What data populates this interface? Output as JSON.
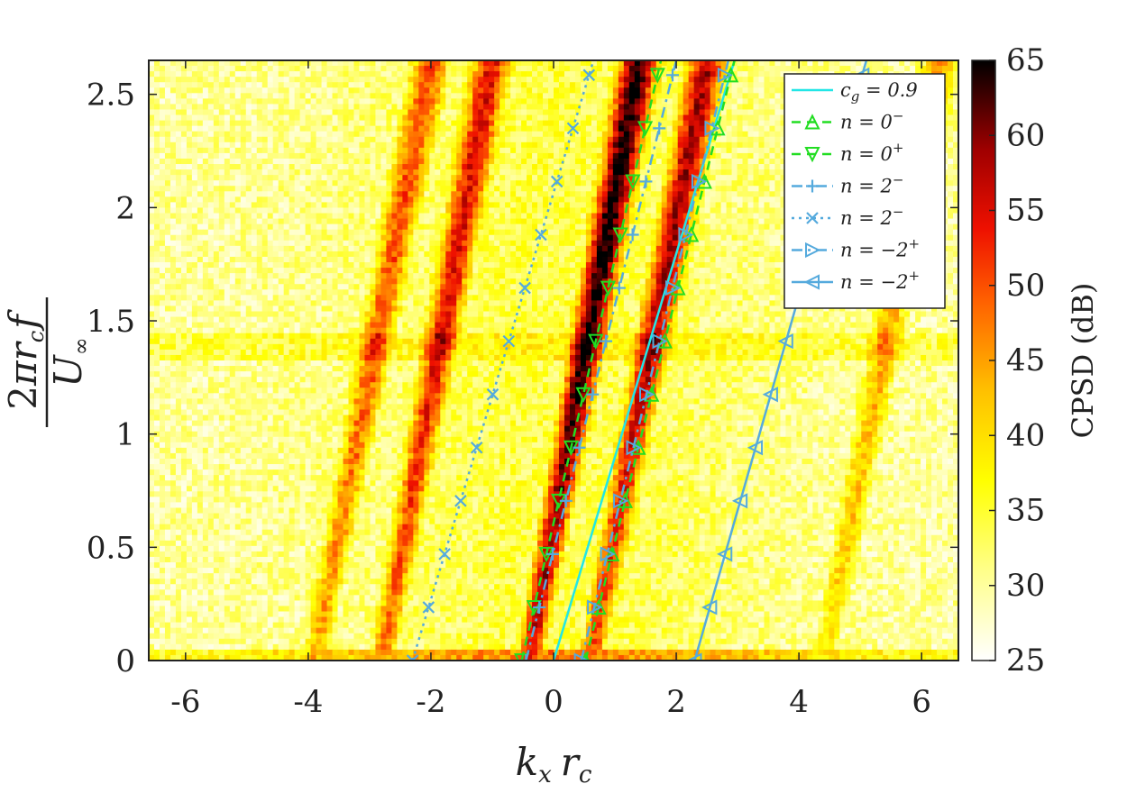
{
  "chart_data": {
    "type": "heatmap",
    "xlabel": "k_x r_c",
    "ylabel": "2πr_c f / U_∞",
    "xlim": [
      -6.6,
      6.6
    ],
    "ylim": [
      0,
      2.65
    ],
    "xticks": [
      -6,
      -4,
      -2,
      0,
      2,
      4,
      6
    ],
    "xtick_labels": [
      "-6",
      "-4",
      "-2",
      "0",
      "2",
      "4",
      "6"
    ],
    "yticks": [
      0,
      0.5,
      1,
      1.5,
      2,
      2.5
    ],
    "ytick_labels": [
      "0",
      "0.5",
      "1",
      "1.5",
      "2",
      "2.5"
    ],
    "colorbar": {
      "label": "CPSD (dB)",
      "range": [
        25,
        65
      ],
      "ticks": [
        25,
        30,
        35,
        40,
        45,
        50,
        55,
        60,
        65
      ],
      "tick_labels": [
        "25",
        "30",
        "35",
        "40",
        "45",
        "50",
        "55",
        "60",
        "65"
      ],
      "colormap": "hot (reversed)"
    },
    "heatmap_ridges": [
      {
        "x0": -0.4,
        "slope": 0.68,
        "peak_db": 65
      },
      {
        "x0": 0.6,
        "slope": 0.72,
        "peak_db": 58
      },
      {
        "x0": -2.8,
        "slope": 0.68,
        "peak_db": 55
      },
      {
        "x0": -3.9,
        "slope": 0.72,
        "peak_db": 50
      },
      {
        "x0": 4.4,
        "slope": 0.72,
        "peak_db": 44
      }
    ],
    "series": [
      {
        "name": "c_g = 0.9",
        "label_main": "c",
        "label_sub": "g",
        "label_rest": " = 0.9",
        "color": "#22e6e6",
        "dash": "solid",
        "marker": "none",
        "x": [
          0,
          2.95
        ],
        "y": [
          0,
          2.65
        ]
      },
      {
        "name": "n = 0−",
        "label_main": "n = 0",
        "label_sup": "−",
        "color": "#22dd22",
        "dash": "dashed",
        "marker": "triangle-up",
        "x": [
          0.52,
          2.95
        ],
        "y": [
          0,
          2.65
        ]
      },
      {
        "name": "n = 0+",
        "label_main": "n = 0",
        "label_sup": "+",
        "color": "#22dd22",
        "dash": "dashed",
        "marker": "triangle-down",
        "x": [
          -0.52,
          1.75
        ],
        "y": [
          0,
          2.65
        ]
      },
      {
        "name": "n = 2−",
        "label_main": "n = 2",
        "label_sup": "−",
        "color": "#55aadd",
        "dash": "dashdot",
        "marker": "plus",
        "x": [
          -0.45,
          2.0
        ],
        "y": [
          0,
          2.65
        ]
      },
      {
        "name": "n = 2−",
        "label_main": "n = 2",
        "label_sup": "−",
        "color": "#55aadd",
        "dash": "dotted",
        "marker": "x",
        "x": [
          -2.3,
          0.65
        ],
        "y": [
          0,
          2.65
        ]
      },
      {
        "name": "n = −2+",
        "label_main": "n = −2",
        "label_sup": "+",
        "color": "#55aadd",
        "dash": "dashdot",
        "marker": "triangle-right",
        "x": [
          0.45,
          2.85
        ],
        "y": [
          0,
          2.65
        ]
      },
      {
        "name": "n = −2+",
        "label_main": "n = −2",
        "label_sup": "+",
        "color": "#55aadd",
        "dash": "solid",
        "marker": "triangle-left",
        "x": [
          2.3,
          5.1
        ],
        "y": [
          0,
          2.65
        ]
      }
    ],
    "marker_y": [
      0,
      0.235,
      0.47,
      0.705,
      0.94,
      1.175,
      1.41,
      1.645,
      1.88,
      2.115,
      2.35,
      2.585
    ],
    "legend_position": "top-right"
  }
}
